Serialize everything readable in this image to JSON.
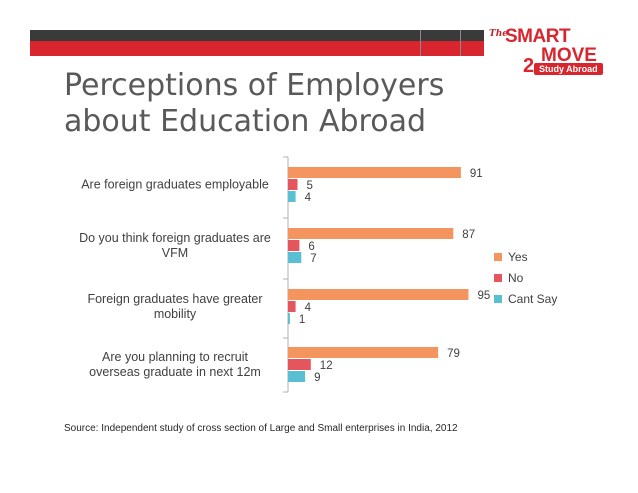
{
  "slide": {
    "title": "Perceptions of Employers about Education Abroad",
    "source": "Source: Independent study  of cross section of Large and Small enterprises in India,  2012"
  },
  "logo": {
    "the": "The",
    "line1": "SMART",
    "line2": "MOVE",
    "two": "2",
    "pill": "Study Abroad"
  },
  "colors": {
    "yes": "#f4945f",
    "no": "#e5555d",
    "cant_say": "#5bbfd3",
    "axis": "#b0b0b0",
    "brand": "#d9262e"
  },
  "chart_data": {
    "type": "bar",
    "orientation": "horizontal",
    "categories": [
      [
        "Are foreign graduates employable"
      ],
      [
        "Do you think foreign graduates are",
        "VFM"
      ],
      [
        "Foreign graduates have greater",
        "mobility"
      ],
      [
        "Are you planning to recruit",
        "overseas graduate in next 12m"
      ]
    ],
    "series": [
      {
        "name": "Yes",
        "color": "#f4945f",
        "values": [
          91,
          87,
          95,
          79
        ]
      },
      {
        "name": "No",
        "color": "#e5555d",
        "values": [
          5,
          6,
          4,
          12
        ]
      },
      {
        "name": "Cant Say",
        "color": "#5bbfd3",
        "values": [
          4,
          7,
          1,
          9
        ]
      }
    ],
    "xlim": [
      0,
      100
    ],
    "legend_position": "right",
    "grid": false
  }
}
